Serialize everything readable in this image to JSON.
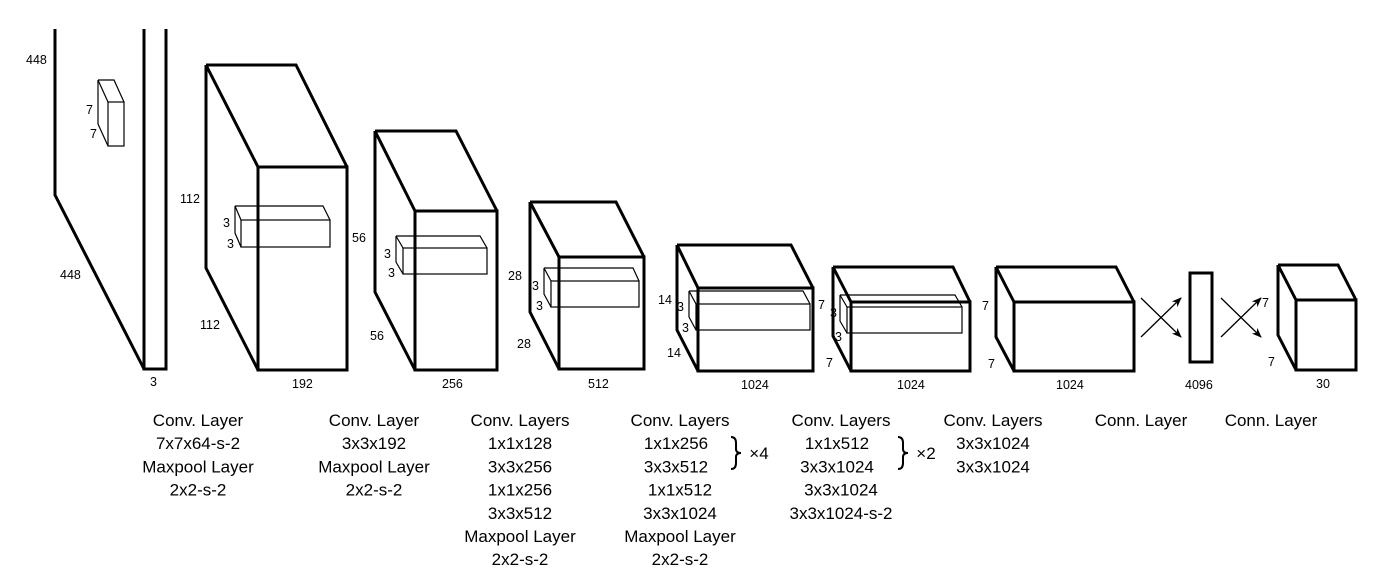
{
  "blocks": [
    {
      "name": "input-image",
      "labels": [
        "448",
        "7",
        "7",
        "448",
        "3"
      ]
    },
    {
      "name": "layer-1",
      "labels": [
        "112",
        "3",
        "3",
        "112",
        "192"
      ]
    },
    {
      "name": "layer-2",
      "labels": [
        "56",
        "3",
        "3",
        "56",
        "256"
      ]
    },
    {
      "name": "layer-3",
      "labels": [
        "28",
        "3",
        "3",
        "28",
        "512"
      ]
    },
    {
      "name": "layer-4",
      "labels": [
        "14",
        "3",
        "3",
        "14",
        "1024"
      ]
    },
    {
      "name": "layer-5",
      "labels": [
        "7",
        "3",
        "3",
        "7",
        "1024"
      ]
    },
    {
      "name": "layer-6",
      "labels": [
        "7",
        "7",
        "1024"
      ]
    },
    {
      "name": "fc-1",
      "labels": [
        "4096"
      ]
    },
    {
      "name": "output",
      "labels": [
        "7",
        "7",
        "30"
      ]
    }
  ],
  "captions": [
    {
      "lines": [
        "Conv. Layer",
        "7x7x64-s-2",
        "Maxpool Layer",
        "2x2-s-2"
      ]
    },
    {
      "lines": [
        "Conv. Layer",
        "3x3x192",
        "Maxpool Layer",
        "2x2-s-2"
      ]
    },
    {
      "lines": [
        "Conv. Layers",
        "1x1x128",
        "3x3x256",
        "1x1x256",
        "3x3x512",
        "Maxpool Layer",
        "2x2-s-2"
      ]
    },
    {
      "lines": [
        "Conv. Layers",
        "1x1x256",
        "3x3x512",
        "1x1x512",
        "3x3x1024",
        "Maxpool Layer",
        "2x2-s-2"
      ],
      "repeat": "×4"
    },
    {
      "lines": [
        "Conv. Layers",
        "1x1x512",
        "3x3x1024",
        "3x3x1024",
        "3x3x1024-s-2"
      ],
      "repeat": "×2"
    },
    {
      "lines": [
        "Conv. Layers",
        "3x3x1024",
        "3x3x1024"
      ]
    },
    {
      "lines": [
        "Conn. Layer"
      ]
    },
    {
      "lines": [
        "Conn. Layer"
      ]
    }
  ]
}
